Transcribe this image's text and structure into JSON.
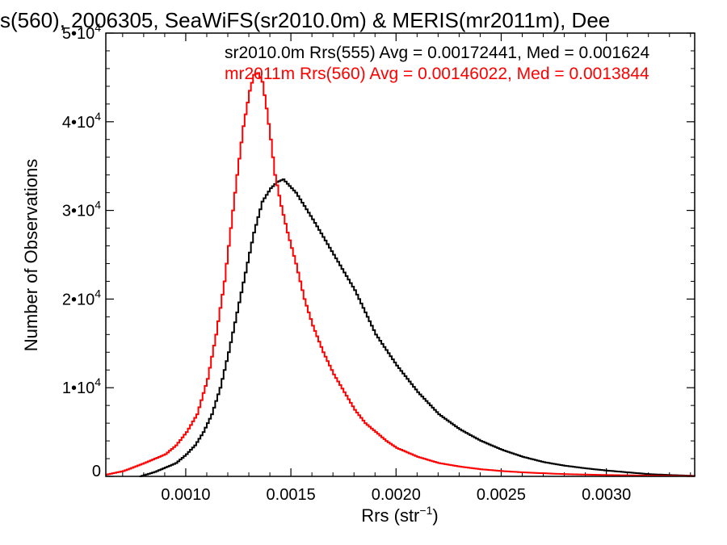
{
  "chart_data": {
    "type": "line",
    "title": "s(560), 2006305, SeaWiFS(sr2010.0m) & MERIS(mr2011m), Dee",
    "xlabel": "Rrs (str",
    "xlabel_sup": "−1",
    "xlabel_close": ")",
    "ylabel": "Number of Observations",
    "xlim": [
      0.00062,
      0.00342
    ],
    "ylim": [
      0,
      50000
    ],
    "x_ticks": [
      0.001,
      0.0015,
      0.002,
      0.0025,
      0.003
    ],
    "x_tick_labels": [
      "0.0010",
      "0.0015",
      "0.0020",
      "0.0025",
      "0.0030"
    ],
    "y_ticks": [
      0,
      10000,
      20000,
      30000,
      40000,
      50000
    ],
    "y_tick_labels": [
      {
        "base": "0",
        "exp": ""
      },
      {
        "base": "1•10",
        "exp": "4"
      },
      {
        "base": "2•10",
        "exp": "4"
      },
      {
        "base": "3•10",
        "exp": "4"
      },
      {
        "base": "4•10",
        "exp": "4"
      },
      {
        "base": "5•10",
        "exp": "4"
      }
    ],
    "grid": false,
    "legend": "top-right",
    "step": true,
    "series": [
      {
        "name": "sr2010.0m Rrs(555) Avg = 0.00172441, Med = 0.001624",
        "color": "#000000",
        "x": [
          0.00078,
          0.00085,
          0.0009,
          0.00095,
          0.001,
          0.00104,
          0.00108,
          0.00112,
          0.00116,
          0.0012,
          0.00124,
          0.00128,
          0.00132,
          0.00136,
          0.0014,
          0.00143,
          0.00146,
          0.00148,
          0.00152,
          0.00156,
          0.0016,
          0.00165,
          0.0017,
          0.00175,
          0.0018,
          0.00185,
          0.0019,
          0.002,
          0.0021,
          0.0022,
          0.0023,
          0.0024,
          0.0025,
          0.0026,
          0.0027,
          0.0028,
          0.0029,
          0.003,
          0.0031,
          0.0032,
          0.0033,
          0.00342
        ],
        "y": [
          0,
          500,
          1000,
          1500,
          2500,
          3500,
          5000,
          7000,
          10000,
          14000,
          18500,
          23000,
          27500,
          31000,
          32500,
          33200,
          33500,
          33000,
          32000,
          30500,
          29000,
          27000,
          25000,
          23000,
          21000,
          18500,
          16000,
          12500,
          9500,
          7000,
          5300,
          4000,
          3000,
          2200,
          1600,
          1200,
          900,
          650,
          450,
          250,
          150,
          50
        ]
      },
      {
        "name": "mr2011m Rrs(560) Avg = 0.00146022, Med = 0.0013844",
        "color": "#ff0000",
        "x": [
          0.00062,
          0.0007,
          0.0008,
          0.0009,
          0.00095,
          0.001,
          0.00105,
          0.0011,
          0.00114,
          0.00118,
          0.00121,
          0.00124,
          0.00127,
          0.0013,
          0.00132,
          0.00134,
          0.00136,
          0.00138,
          0.0014,
          0.00142,
          0.00145,
          0.00148,
          0.00152,
          0.00156,
          0.0016,
          0.00165,
          0.0017,
          0.00175,
          0.0018,
          0.00185,
          0.0019,
          0.00195,
          0.002,
          0.0021,
          0.0022,
          0.0023,
          0.0024,
          0.0025,
          0.0026,
          0.0027,
          0.0028,
          0.003,
          0.0032,
          0.00342
        ],
        "y": [
          200,
          600,
          1500,
          2500,
          3500,
          5000,
          7000,
          11000,
          16000,
          22000,
          28000,
          34000,
          39500,
          43500,
          45300,
          45500,
          44500,
          41500,
          38000,
          34000,
          30500,
          27500,
          24000,
          20000,
          17000,
          14000,
          11500,
          9500,
          7500,
          6000,
          5000,
          4000,
          3200,
          2200,
          1500,
          1100,
          800,
          600,
          450,
          350,
          250,
          150,
          80,
          30
        ]
      }
    ]
  }
}
